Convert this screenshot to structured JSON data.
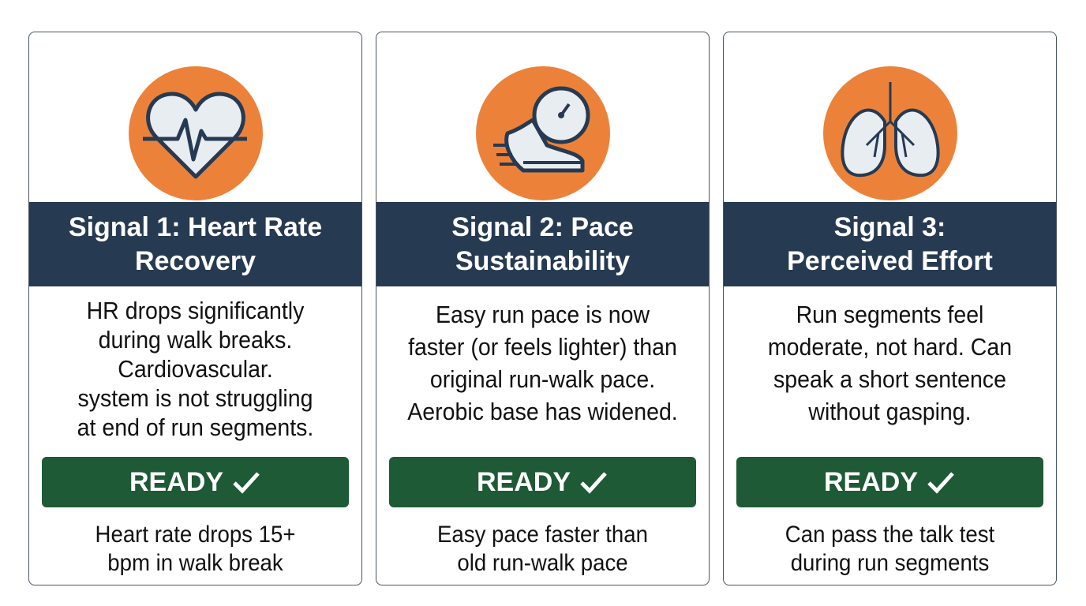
{
  "colors": {
    "accent": "#ec823a",
    "header": "#263a52",
    "ready": "#1d5a35"
  },
  "cards": [
    {
      "icon": "heart-pulse-icon",
      "title_lines": [
        "Signal 1: Heart Rate",
        "Recovery"
      ],
      "body_lines": [
        "HR drops significantly",
        "during walk breaks.",
        "Cardiovascular.",
        "system is not struggling",
        "at end of run segments."
      ],
      "status": "READY",
      "footer_lines": [
        "Heart rate drops 15+",
        "bpm in walk break"
      ]
    },
    {
      "icon": "running-shoe-stopwatch-icon",
      "title_lines": [
        "Signal 2: Pace",
        "Sustainability"
      ],
      "body_lines": [
        "Easy run pace is now",
        "faster (or feels lighter) than",
        "original run-walk pace.",
        "Aerobic base has widened."
      ],
      "status": "READY",
      "footer_lines": [
        "Easy pace faster than",
        "old run-walk pace"
      ]
    },
    {
      "icon": "lungs-icon",
      "title_lines": [
        "Signal 3:",
        "Perceived Effort"
      ],
      "body_lines": [
        "Run segments feel",
        "moderate, not hard. Can",
        "speak a short sentence",
        "without gasping."
      ],
      "status": "READY",
      "footer_lines": [
        "Can pass the talk test",
        "during run segments"
      ]
    }
  ]
}
